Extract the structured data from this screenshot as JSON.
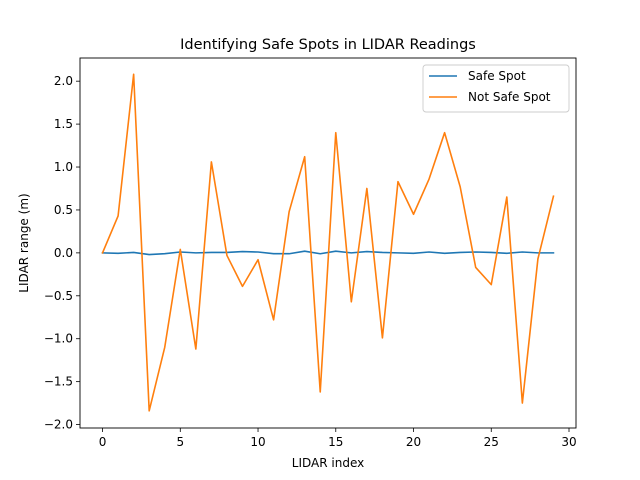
{
  "chart_data": {
    "type": "line",
    "title": "Identifying Safe Spots in LIDAR Readings",
    "xlabel": "LIDAR index",
    "ylabel": "LIDAR range (m)",
    "xlim": [
      -1.45,
      30.45
    ],
    "ylim": [
      -2.04,
      2.27
    ],
    "xticks": [
      0,
      5,
      10,
      15,
      20,
      25,
      30
    ],
    "xtick_labels": [
      "0",
      "5",
      "10",
      "15",
      "20",
      "25",
      "30"
    ],
    "yticks": [
      -2.0,
      -1.5,
      -1.0,
      -0.5,
      0.0,
      0.5,
      1.0,
      1.5,
      2.0
    ],
    "ytick_labels": [
      "−2.0",
      "−1.5",
      "−1.0",
      "−0.5",
      "0.0",
      "0.5",
      "1.0",
      "1.5",
      "2.0"
    ],
    "grid": false,
    "legend_position": "top-right",
    "x": [
      0,
      1,
      2,
      3,
      4,
      5,
      6,
      7,
      8,
      9,
      10,
      11,
      12,
      13,
      14,
      15,
      16,
      17,
      18,
      19,
      20,
      21,
      22,
      23,
      24,
      25,
      26,
      27,
      28,
      29
    ],
    "series": [
      {
        "name": "Safe Spot",
        "color": "#1f77b4",
        "values": [
          0.0,
          -0.005,
          0.005,
          -0.02,
          -0.01,
          0.01,
          0.0,
          0.005,
          0.005,
          0.015,
          0.01,
          -0.01,
          -0.01,
          0.02,
          -0.01,
          0.02,
          0.0,
          0.015,
          0.005,
          0.0,
          -0.005,
          0.01,
          -0.005,
          0.005,
          0.01,
          0.005,
          -0.005,
          0.01,
          0.0,
          0.0
        ]
      },
      {
        "name": "Not Safe Spot",
        "color": "#ff7f0e",
        "values": [
          0.0,
          0.43,
          2.08,
          -1.84,
          -1.1,
          0.04,
          -1.12,
          1.06,
          -0.03,
          -0.39,
          -0.08,
          -0.78,
          0.48,
          1.12,
          -1.62,
          1.4,
          -0.57,
          0.75,
          -0.99,
          0.83,
          0.45,
          0.86,
          1.4,
          0.77,
          -0.17,
          -0.37,
          0.65,
          -1.75,
          -0.07,
          0.66
        ]
      }
    ]
  }
}
